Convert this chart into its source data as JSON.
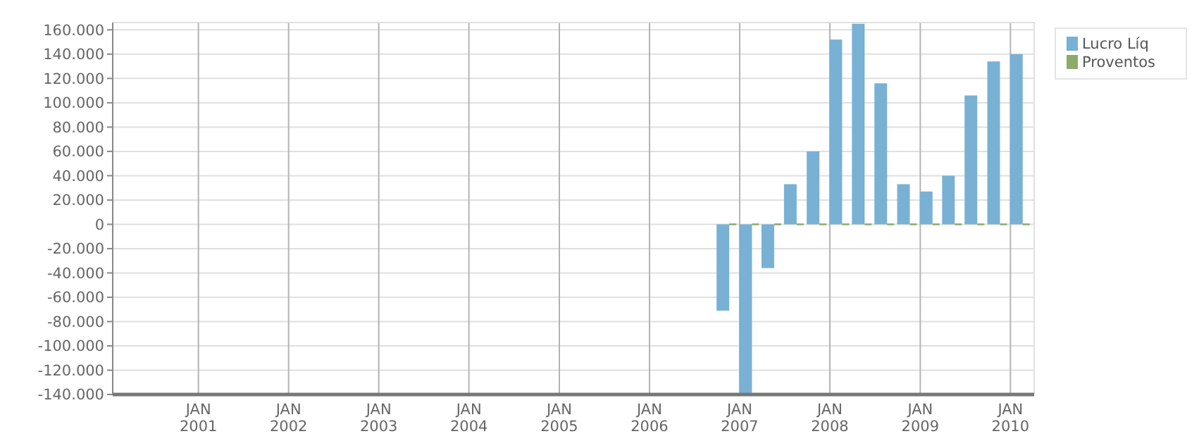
{
  "chart_data": {
    "type": "bar",
    "x": [
      "2006-10-25",
      "2007-01-25",
      "2007-04-25",
      "2007-07-25",
      "2007-10-25",
      "2008-01-25",
      "2008-04-25",
      "2008-07-25",
      "2008-10-25",
      "2009-01-25",
      "2009-04-25",
      "2009-07-25",
      "2009-10-25",
      "2010-01-25"
    ],
    "series": [
      {
        "name": "Lucro Líq",
        "color": "#78b1d3",
        "values": [
          -71000,
          -140000,
          -36000,
          33000,
          60000,
          152000,
          165000,
          116000,
          33000,
          27000,
          40000,
          106000,
          134000,
          140000
        ]
      },
      {
        "name": "Proventos",
        "color": "#8aab6a",
        "values": [
          0,
          0,
          0,
          0,
          0,
          0,
          0,
          0,
          0,
          0,
          0,
          0,
          0,
          0
        ]
      }
    ],
    "xlim": [
      "2000-01-20",
      "2010-04-07"
    ],
    "xticks": [
      {
        "value": "2001-01-01",
        "label": "JAN 2001"
      },
      {
        "value": "2002-01-01",
        "label": "JAN 2002"
      },
      {
        "value": "2003-01-01",
        "label": "JAN 2003"
      },
      {
        "value": "2004-01-01",
        "label": "JAN 2004"
      },
      {
        "value": "2005-01-01",
        "label": "JAN 2005"
      },
      {
        "value": "2006-01-01",
        "label": "JAN 2006"
      },
      {
        "value": "2007-01-01",
        "label": "JAN 2007"
      },
      {
        "value": "2008-01-01",
        "label": "JAN 2008"
      },
      {
        "value": "2009-01-01",
        "label": "JAN 2009"
      },
      {
        "value": "2010-01-01",
        "label": "JAN 2010"
      }
    ],
    "ylim": [
      -140000,
      166000
    ],
    "yticks": [
      {
        "value": 160000,
        "label": "160.000"
      },
      {
        "value": 140000,
        "label": "140.000"
      },
      {
        "value": 120000,
        "label": "120.000"
      },
      {
        "value": 100000,
        "label": "100.000"
      },
      {
        "value": 80000,
        "label": "80.000"
      },
      {
        "value": 60000,
        "label": "60.000"
      },
      {
        "value": 40000,
        "label": "40.000"
      },
      {
        "value": 20000,
        "label": "20.000"
      },
      0,
      {
        "value": -20000,
        "label": "-20.000"
      },
      {
        "value": -40000,
        "label": "-40.000"
      },
      {
        "value": -60000,
        "label": "-60.000"
      },
      {
        "value": -80000,
        "label": "-80.000"
      },
      {
        "value": -100000,
        "label": "-100.000"
      },
      {
        "value": -120000,
        "label": "-120.000"
      },
      {
        "value": -140000,
        "label": "-140.000"
      }
    ],
    "grid": true,
    "legend": "top right"
  }
}
